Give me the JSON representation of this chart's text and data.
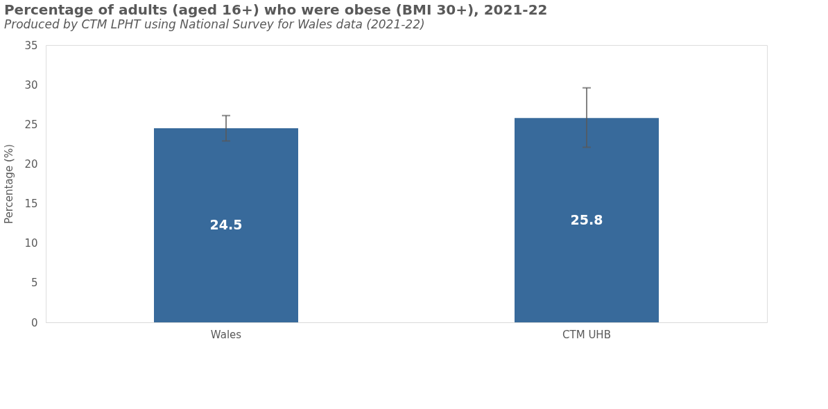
{
  "chart_data": {
    "type": "bar",
    "title": "Percentage of adults (aged 16+) who were obese (BMI 30+), 2021-22",
    "subtitle": "Produced by CTM LPHT using National Survey for Wales data (2021-22)",
    "ylabel": "Percentage (%)",
    "categories": [
      "Wales",
      "CTM UHB"
    ],
    "values": [
      24.5,
      25.8
    ],
    "color": "#386a9b",
    "errors": [
      [
        22.9,
        26.1
      ],
      [
        22.1,
        29.6
      ]
    ],
    "ylim": [
      0,
      35
    ],
    "yticks": [
      0,
      5,
      10,
      15,
      20,
      25,
      30,
      35
    ],
    "grid": false,
    "data_labels": true
  }
}
